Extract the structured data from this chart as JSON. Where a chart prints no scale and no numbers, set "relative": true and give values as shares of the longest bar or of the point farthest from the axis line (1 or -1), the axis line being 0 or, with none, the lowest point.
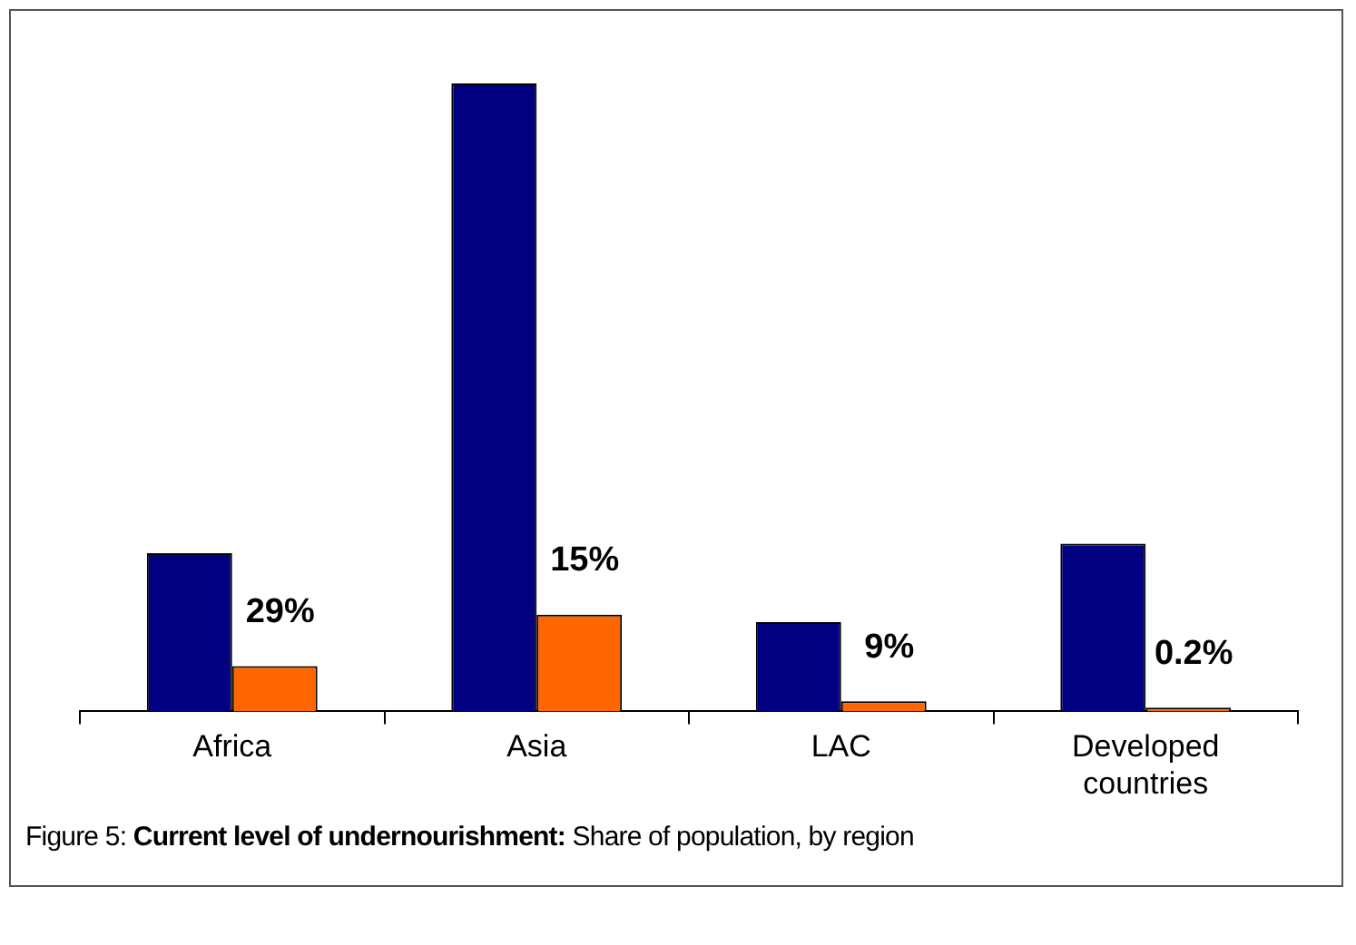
{
  "chart_data": {
    "type": "bar",
    "relative": true,
    "title": "Current level of undernourishment:",
    "subtitle": "Share of population, by region",
    "annotations": [
      "Figure 5:",
      {
        "text": "29%",
        "x": "Africa",
        "y": 0.072
      },
      {
        "text": "15%",
        "x": "Asia",
        "y": 0.154
      },
      {
        "text": "9%",
        "x": "LAC",
        "y": 0.016
      },
      {
        "text": "0.2%",
        "x": "Developed countries",
        "y": 0.006
      }
    ],
    "categories": [
      "Africa",
      "Asia",
      "LAC",
      "Developed countries"
    ],
    "series": [
      {
        "color": "#000080",
        "values": [
          0.252,
          1,
          0.142,
          0.267
        ]
      },
      {
        "color": "#ff6600",
        "values": [
          0.072,
          0.154,
          0.016,
          0.006
        ]
      }
    ],
    "grid": false,
    "legend": false
  }
}
